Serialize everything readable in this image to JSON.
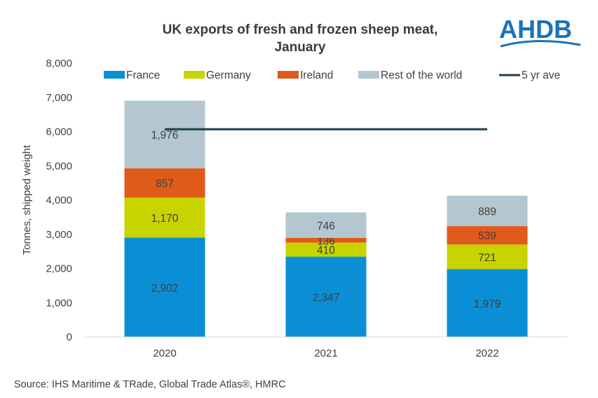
{
  "logo": {
    "text": "AHDB",
    "color": "#1a73b8"
  },
  "source": "Source: IHS Maritime & TRade, Global Trade Atlas®, HMRC",
  "chart_data": {
    "type": "bar",
    "stacked": true,
    "title": [
      "UK exports of fresh and frozen sheep meat,",
      "January"
    ],
    "ylabel": "Tonnes, shipped weight",
    "xlabel": "",
    "categories": [
      "2020",
      "2021",
      "2022"
    ],
    "ylim": [
      0,
      8000
    ],
    "yticks": [
      0,
      1000,
      2000,
      3000,
      4000,
      5000,
      6000,
      7000,
      8000
    ],
    "ytick_labels": [
      "0",
      "1,000",
      "2,000",
      "3,000",
      "4,000",
      "5,000",
      "6,000",
      "7,000",
      "8,000"
    ],
    "grid": false,
    "legend_position": "top",
    "series": [
      {
        "name": "France",
        "color": "#0a8fd6",
        "values": [
          2902,
          2347,
          1979
        ],
        "labels": [
          "2,902",
          "2,347",
          "1,979"
        ]
      },
      {
        "name": "Germany",
        "color": "#c8d400",
        "values": [
          1170,
          410,
          721
        ],
        "labels": [
          "1,170",
          "410",
          "721"
        ]
      },
      {
        "name": "Ireland",
        "color": "#e05a1a",
        "values": [
          857,
          136,
          539
        ],
        "labels": [
          "857",
          "136",
          "539"
        ]
      },
      {
        "name": "Rest of the world",
        "color": "#b4c7d0",
        "values": [
          1976,
          746,
          889
        ],
        "labels": [
          "1,976",
          "746",
          "889"
        ]
      }
    ],
    "line": {
      "name": "5 yr ave",
      "color": "#1c3d4f",
      "value": 6070
    }
  }
}
